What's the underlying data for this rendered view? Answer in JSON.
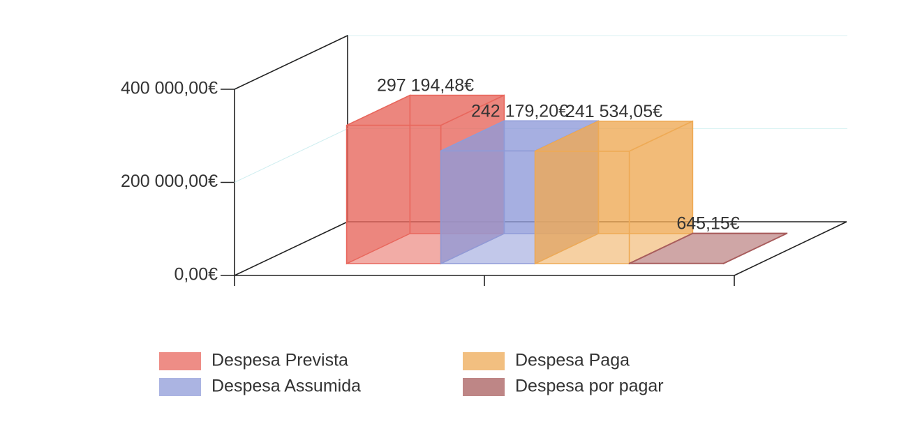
{
  "chart_data": {
    "type": "bar3d",
    "series": [
      {
        "name": "Despesa Prevista",
        "color": "#e8675d",
        "values": [
          297194.48
        ],
        "value_labels": [
          "297 194,48€"
        ]
      },
      {
        "name": "Despesa Assumida",
        "color": "#8f9bd8",
        "values": [
          242179.2
        ],
        "value_labels": [
          "242 179,20€"
        ]
      },
      {
        "name": "Despesa Paga",
        "color": "#eeaa55",
        "values": [
          241534.05
        ],
        "value_labels": [
          "241 534,05€"
        ]
      },
      {
        "name": "Despesa por pagar",
        "color": "#a85d5d",
        "values": [
          645.15
        ],
        "value_labels": [
          "645,15€"
        ]
      }
    ],
    "ylim": [
      0,
      400000
    ],
    "yticks": [
      {
        "value": 0,
        "label": "0,00€"
      },
      {
        "value": 200000,
        "label": "200 000,00€"
      },
      {
        "value": 400000,
        "label": "400 000,00€"
      }
    ],
    "grid": true
  }
}
